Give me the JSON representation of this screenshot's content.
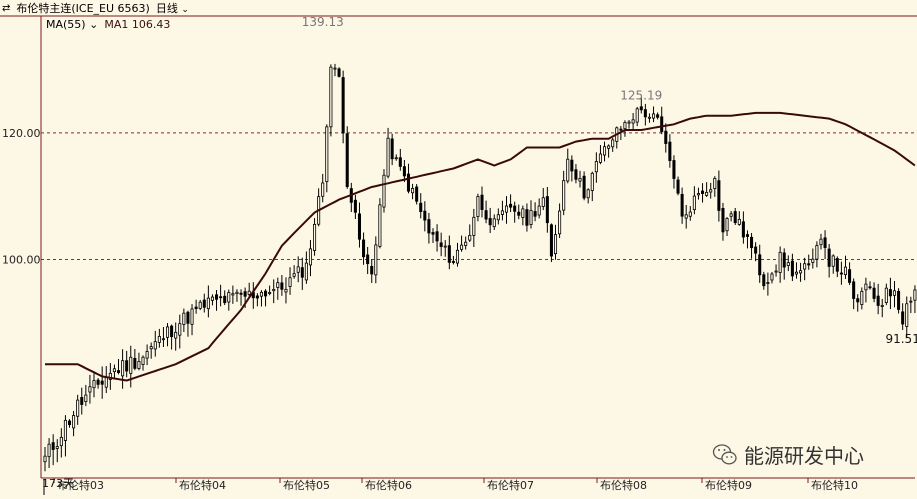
{
  "header": {
    "title": "布伦特主连(ICE_EU 6563)",
    "period": "日线",
    "ma_selector": "MA(55)",
    "ma1_label": "MA1 106.43"
  },
  "watermark": "能源研发中心",
  "colors": {
    "background": "#fdf8e6",
    "grid": "#8b2a2a",
    "candle": "#000000",
    "ma_line": "#3a0a0a",
    "axis": "#7a1a1a"
  },
  "chart_data": {
    "type": "candlestick",
    "y_ticks": [
      "120.00",
      "100.00"
    ],
    "y_tick_values": [
      120,
      100
    ],
    "ylim": [
      73,
      142
    ],
    "x_tick_labels": [
      "布伦特03",
      "布伦特04",
      "布伦特05",
      "布伦特06",
      "布伦特07",
      "布伦特08",
      "布伦特09",
      "布伦特10"
    ],
    "annotations": [
      {
        "text": "139.13",
        "value": 139.13,
        "bar": 68
      },
      {
        "text": "125.19",
        "value": 125.19,
        "bar": 146
      },
      {
        "text": "91.51",
        "value": 91.51,
        "bar": 210
      }
    ],
    "bottom_left_label": "173天",
    "n_bars": 214,
    "anchors": [
      [
        0,
        75
      ],
      [
        8,
        81
      ],
      [
        16,
        85
      ],
      [
        24,
        87
      ],
      [
        32,
        91
      ],
      [
        40,
        94
      ],
      [
        50,
        95
      ],
      [
        58,
        96
      ],
      [
        64,
        99
      ],
      [
        68,
        112
      ],
      [
        70,
        132
      ],
      [
        72,
        130
      ],
      [
        74,
        112
      ],
      [
        78,
        100
      ],
      [
        80,
        98
      ],
      [
        84,
        118
      ],
      [
        86,
        115
      ],
      [
        90,
        110
      ],
      [
        94,
        104
      ],
      [
        98,
        101
      ],
      [
        100,
        100
      ],
      [
        104,
        104
      ],
      [
        106,
        109
      ],
      [
        110,
        105
      ],
      [
        114,
        108
      ],
      [
        118,
        106
      ],
      [
        122,
        109
      ],
      [
        124,
        100
      ],
      [
        128,
        116
      ],
      [
        132,
        110
      ],
      [
        136,
        116
      ],
      [
        140,
        120
      ],
      [
        144,
        123
      ],
      [
        146,
        124
      ],
      [
        150,
        122
      ],
      [
        154,
        113
      ],
      [
        156,
        106
      ],
      [
        160,
        110
      ],
      [
        164,
        112
      ],
      [
        166,
        104
      ],
      [
        168,
        107
      ],
      [
        172,
        103
      ],
      [
        176,
        97
      ],
      [
        180,
        100
      ],
      [
        184,
        98
      ],
      [
        188,
        99
      ],
      [
        190,
        104
      ],
      [
        192,
        100
      ],
      [
        196,
        98
      ],
      [
        198,
        94
      ],
      [
        202,
        96
      ],
      [
        204,
        94
      ],
      [
        208,
        96
      ],
      [
        210,
        92
      ],
      [
        212,
        95
      ],
      [
        213,
        96
      ]
    ],
    "ma_anchors": [
      [
        0,
        86
      ],
      [
        8,
        86
      ],
      [
        14,
        84.5
      ],
      [
        20,
        84
      ],
      [
        26,
        85
      ],
      [
        32,
        86
      ],
      [
        40,
        88
      ],
      [
        48,
        93
      ],
      [
        54,
        98
      ],
      [
        58,
        102
      ],
      [
        62,
        104.5
      ],
      [
        66,
        107
      ],
      [
        72,
        109
      ],
      [
        80,
        111
      ],
      [
        90,
        112.5
      ],
      [
        100,
        114
      ],
      [
        106,
        115.5
      ],
      [
        110,
        114.5
      ],
      [
        114,
        115.5
      ],
      [
        118,
        117.5
      ],
      [
        122,
        117.5
      ],
      [
        126,
        117.5
      ],
      [
        130,
        118.5
      ],
      [
        134,
        119
      ],
      [
        138,
        119
      ],
      [
        142,
        120.5
      ],
      [
        146,
        120.5
      ],
      [
        150,
        121
      ],
      [
        154,
        121.5
      ],
      [
        158,
        122.5
      ],
      [
        162,
        123
      ],
      [
        168,
        123
      ],
      [
        174,
        123.5
      ],
      [
        180,
        123.5
      ],
      [
        186,
        123
      ],
      [
        192,
        122.5
      ],
      [
        196,
        121.5
      ],
      [
        200,
        120
      ],
      [
        204,
        118.5
      ],
      [
        208,
        117
      ],
      [
        213,
        114.5
      ]
    ]
  }
}
